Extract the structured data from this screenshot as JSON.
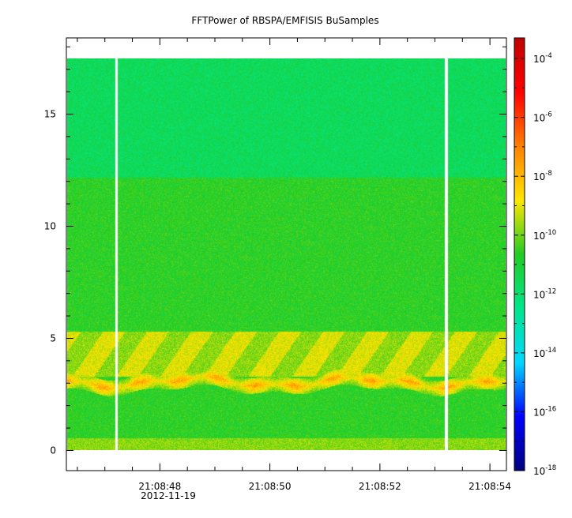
{
  "chart_data": {
    "type": "heatmap",
    "title": "FFTPower of RBSPA/EMFISIS  BuSamples",
    "xlabel": "",
    "ylabel": "",
    "x_axis": {
      "type": "time",
      "tick_labels": [
        "21:08:48",
        "21:08:50",
        "21:08:52",
        "21:08:54"
      ],
      "tick_values_sec": [
        48,
        50,
        52,
        54
      ],
      "date_label": "2012-11-19",
      "range_sec": [
        46.3,
        54.3
      ]
    },
    "y_axis": {
      "tick_labels": [
        "0",
        "5",
        "10",
        "15"
      ],
      "tick_values": [
        0,
        5,
        10,
        15
      ],
      "range": [
        -0.9,
        18.4
      ]
    },
    "z_axis": {
      "scale": "log",
      "range_exp": [
        -18,
        -3.3
      ],
      "tick_exponents": [
        -18,
        -16,
        -14,
        -12,
        -10,
        -8,
        -6,
        -4
      ],
      "base_label": "10"
    },
    "colormap": [
      "#00007f",
      "#0000ff",
      "#00d8ff",
      "#00e68c",
      "#22cc22",
      "#ffe600",
      "#ff7f00",
      "#ff0000",
      "#c00000"
    ],
    "data_extent": {
      "y": [
        0,
        17.5
      ]
    },
    "gaps_sec": [
      47.2,
      53.2
    ],
    "bands": [
      {
        "y": [
          0,
          0.55
        ],
        "level": "yellow-green"
      },
      {
        "y": [
          0.55,
          2.7
        ],
        "level": "green"
      },
      {
        "y": [
          2.7,
          3.4
        ],
        "level": "orange-yellow"
      },
      {
        "y": [
          3.4,
          5.2
        ],
        "level": "yellow-green"
      },
      {
        "y": [
          5.2,
          12.2
        ],
        "level": "green"
      },
      {
        "y": [
          12.2,
          17.5
        ],
        "level": "teal-green"
      }
    ]
  }
}
